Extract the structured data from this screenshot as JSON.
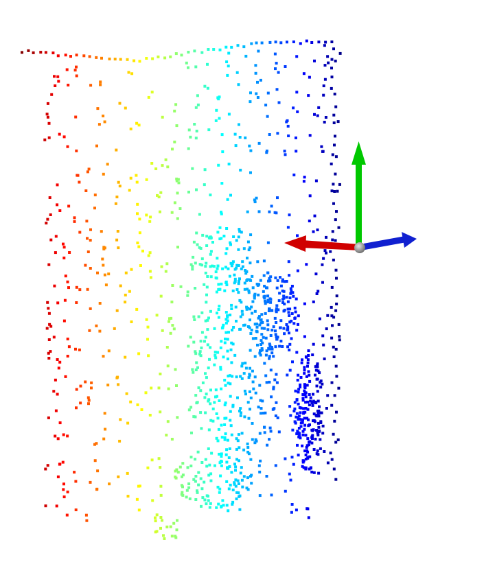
{
  "scene": {
    "background": "#ffffff",
    "colormap": "jet",
    "point_shape": "square",
    "seed": 20240611
  },
  "axes_gizmo": {
    "x_axis_color": "#d00000",
    "y_axis_color": "#00c800",
    "z_axis_color": "#1020d0",
    "origin_color": "#8c8c8c"
  }
}
